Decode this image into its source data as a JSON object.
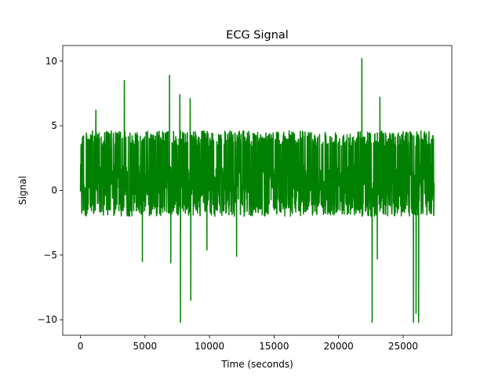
{
  "chart_data": {
    "type": "line",
    "title": "ECG Signal",
    "xlabel": "Time (seconds)",
    "ylabel": "Signal",
    "xlim": [
      -1370,
      28770
    ],
    "ylim": [
      -11.2,
      11.2
    ],
    "x_ticks": [
      0,
      5000,
      10000,
      15000,
      20000,
      25000
    ],
    "x_tick_labels": [
      "0",
      "5000",
      "10000",
      "15000",
      "20000",
      "25000"
    ],
    "y_ticks": [
      -10,
      -5,
      0,
      5,
      10
    ],
    "y_tick_labels": [
      "−10",
      "−5",
      "0",
      "5",
      "10"
    ],
    "grid": false,
    "legend": "none",
    "series": [
      {
        "color": "#008000",
        "x_range": [
          0,
          27400
        ],
        "typical_range": [
          -2.0,
          4.6
        ],
        "notable_points": [
          {
            "x": 1200,
            "y": 6.2
          },
          {
            "x": 3400,
            "y": 8.5
          },
          {
            "x": 4800,
            "y": -5.5
          },
          {
            "x": 6900,
            "y": 8.9
          },
          {
            "x": 7000,
            "y": -5.6
          },
          {
            "x": 7700,
            "y": 7.4
          },
          {
            "x": 7750,
            "y": -10.2
          },
          {
            "x": 8500,
            "y": 7.1
          },
          {
            "x": 8550,
            "y": -8.5
          },
          {
            "x": 9800,
            "y": -4.6
          },
          {
            "x": 12100,
            "y": -5.1
          },
          {
            "x": 21800,
            "y": 10.2
          },
          {
            "x": 22600,
            "y": -10.2
          },
          {
            "x": 23000,
            "y": -5.3
          },
          {
            "x": 23200,
            "y": 7.2
          },
          {
            "x": 25800,
            "y": -10.2
          },
          {
            "x": 26000,
            "y": -9.5
          },
          {
            "x": 26200,
            "y": -10.2
          }
        ]
      }
    ]
  }
}
